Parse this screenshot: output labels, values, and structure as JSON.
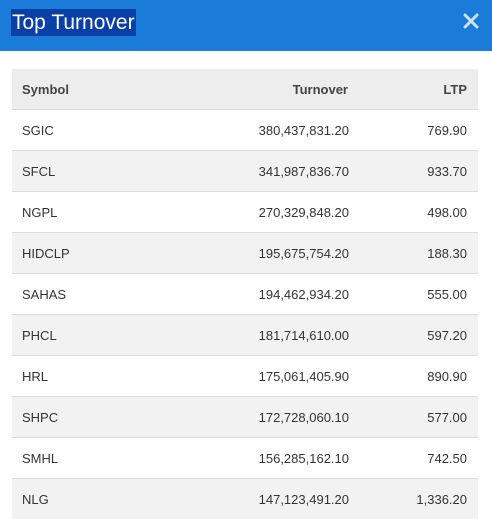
{
  "modal": {
    "title": "Top Turnover",
    "close_icon": "close-icon"
  },
  "table": {
    "headers": {
      "symbol": "Symbol",
      "turnover": "Turnover",
      "ltp": "LTP"
    },
    "rows": [
      {
        "symbol": "SGIC",
        "turnover": "380,437,831.20",
        "ltp": "769.90"
      },
      {
        "symbol": "SFCL",
        "turnover": "341,987,836.70",
        "ltp": "933.70"
      },
      {
        "symbol": "NGPL",
        "turnover": "270,329,848.20",
        "ltp": "498.00"
      },
      {
        "symbol": "HIDCLP",
        "turnover": "195,675,754.20",
        "ltp": "188.30"
      },
      {
        "symbol": "SAHAS",
        "turnover": "194,462,934.20",
        "ltp": "555.00"
      },
      {
        "symbol": "PHCL",
        "turnover": "181,714,610.00",
        "ltp": "597.20"
      },
      {
        "symbol": "HRL",
        "turnover": "175,061,405.90",
        "ltp": "890.90"
      },
      {
        "symbol": "SHPC",
        "turnover": "172,728,060.10",
        "ltp": "577.00"
      },
      {
        "symbol": "SMHL",
        "turnover": "156,285,162.10",
        "ltp": "742.50"
      },
      {
        "symbol": "NLG",
        "turnover": "147,123,491.20",
        "ltp": "1,336.20"
      }
    ]
  },
  "colors": {
    "header_bg": "#1a7bd9",
    "title_highlight": "#0a3fa8",
    "row_stripe": "#f2f2f2",
    "table_header_bg": "#ededed"
  }
}
